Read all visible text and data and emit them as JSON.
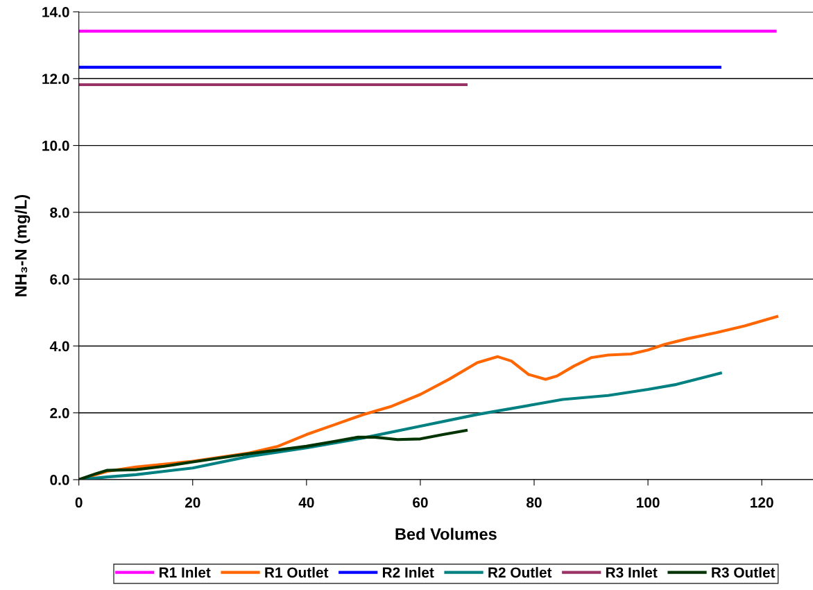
{
  "chart_data": {
    "type": "line",
    "xlabel": "Bed Volumes",
    "ylabel": "NH₃-N (mg/L)",
    "xlim": [
      0,
      129
    ],
    "xticks": [
      0,
      20,
      40,
      60,
      80,
      100,
      120
    ],
    "ylim": [
      0,
      14
    ],
    "yticks": [
      {
        "value": 0,
        "label": "0.0"
      },
      {
        "value": 2,
        "label": "2.0"
      },
      {
        "value": 4,
        "label": "4.0"
      },
      {
        "value": 6,
        "label": "6.0"
      },
      {
        "value": 8,
        "label": "8.0"
      },
      {
        "value": 10,
        "label": "10.0"
      },
      {
        "value": 12,
        "label": "12.0"
      },
      {
        "value": 14,
        "label": "14.0"
      }
    ],
    "grid": "y",
    "legend": "bottom",
    "marker": "none",
    "line_style": "solid",
    "series": [
      {
        "name": "R1 Inlet",
        "color": "#ff00ff",
        "x": [
          0,
          122.6
        ],
        "values": [
          13.42,
          13.42
        ]
      },
      {
        "name": "R1 Outlet",
        "color": "#ff6600",
        "x": [
          0,
          5,
          10,
          20,
          30,
          35,
          40,
          45,
          50,
          55,
          60,
          65,
          70,
          73.6,
          76,
          79,
          82,
          84,
          87,
          90,
          93,
          97,
          100,
          103,
          107,
          112,
          117,
          122.9
        ],
        "values": [
          0,
          0.25,
          0.38,
          0.55,
          0.8,
          1.0,
          1.35,
          1.65,
          1.95,
          2.2,
          2.55,
          3.0,
          3.5,
          3.68,
          3.55,
          3.15,
          3.0,
          3.1,
          3.4,
          3.65,
          3.73,
          3.76,
          3.88,
          4.05,
          4.22,
          4.4,
          4.6,
          4.89
        ]
      },
      {
        "name": "R2 Inlet",
        "color": "#0000ff",
        "x": [
          0,
          112.9
        ],
        "values": [
          12.34,
          12.34
        ]
      },
      {
        "name": "R2 Outlet",
        "color": "#008080",
        "x": [
          0,
          5,
          10,
          20,
          30,
          40,
          50,
          60,
          70,
          80,
          85,
          93,
          100,
          105,
          113
        ],
        "values": [
          0,
          0.08,
          0.15,
          0.35,
          0.7,
          0.95,
          1.25,
          1.6,
          1.95,
          2.25,
          2.4,
          2.52,
          2.7,
          2.85,
          3.2
        ]
      },
      {
        "name": "R3 Inlet",
        "color": "#993366",
        "x": [
          0,
          68.3
        ],
        "values": [
          11.82,
          11.82
        ]
      },
      {
        "name": "R3 Outlet",
        "color": "#003300",
        "x": [
          0,
          3,
          5,
          10,
          15,
          20,
          30,
          40,
          45,
          49,
          52,
          56,
          60,
          64,
          68.3
        ],
        "values": [
          0,
          0.18,
          0.28,
          0.3,
          0.4,
          0.53,
          0.78,
          1.0,
          1.15,
          1.27,
          1.27,
          1.2,
          1.22,
          1.35,
          1.48
        ]
      }
    ]
  }
}
